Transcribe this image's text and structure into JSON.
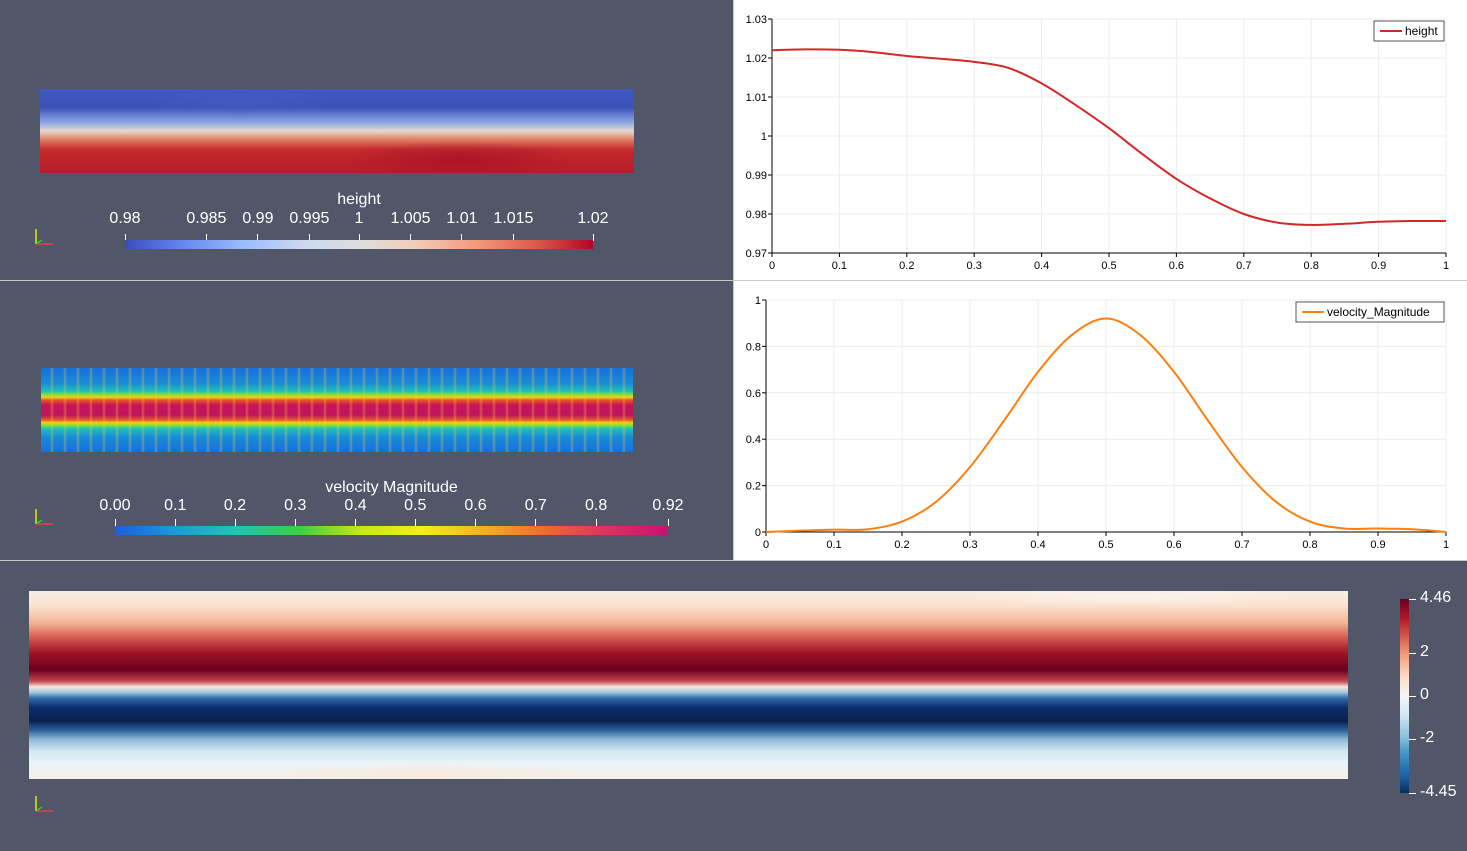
{
  "height_view": {
    "colorbar": {
      "title": "height",
      "ticks": [
        "0.98",
        "0.985",
        "0.99",
        "0.995",
        "1",
        "1.005",
        "1.01",
        "1.015",
        "1.02"
      ],
      "tick_fractions": [
        0.0,
        0.174,
        0.284,
        0.394,
        0.5,
        0.61,
        0.72,
        0.83,
        1.0
      ]
    },
    "colors": {
      "low": "#3b4cc0",
      "mid": "#dddddd",
      "high": "#b40426"
    }
  },
  "velocity_view": {
    "colorbar": {
      "title": "velocity Magnitude",
      "ticks": [
        "0.00",
        "0.1",
        "0.2",
        "0.3",
        "0.4",
        "0.5",
        "0.6",
        "0.7",
        "0.8",
        "0.92"
      ],
      "tick_fractions": [
        0.0,
        0.109,
        0.217,
        0.326,
        0.435,
        0.543,
        0.652,
        0.761,
        0.87,
        1.0
      ]
    }
  },
  "vorticity_view": {
    "colorbar": {
      "ticks": [
        "4.46",
        "2",
        "0",
        "-2",
        "-4.45"
      ],
      "tick_fractions": [
        1.0,
        0.724,
        0.5,
        0.276,
        0.0
      ]
    }
  },
  "chart_data": [
    {
      "type": "line",
      "series": [
        {
          "name": "height",
          "color": "#d62728",
          "x": [
            0,
            0.05,
            0.1,
            0.15,
            0.2,
            0.25,
            0.3,
            0.35,
            0.4,
            0.45,
            0.5,
            0.55,
            0.6,
            0.65,
            0.7,
            0.75,
            0.8,
            0.85,
            0.9,
            0.95,
            1.0
          ],
          "values": [
            1.022,
            1.0222,
            1.0221,
            1.0215,
            1.0205,
            1.0198,
            1.019,
            1.0175,
            1.0135,
            1.008,
            1.002,
            0.9953,
            0.989,
            0.984,
            0.98,
            0.9778,
            0.9772,
            0.9775,
            0.978,
            0.9782,
            0.9782
          ]
        }
      ],
      "xlim": [
        0,
        1
      ],
      "ylim": [
        0.97,
        1.03
      ],
      "xticks": [
        "0",
        "0.1",
        "0.2",
        "0.3",
        "0.4",
        "0.5",
        "0.6",
        "0.7",
        "0.8",
        "0.9",
        "1"
      ],
      "yticks": [
        "0.97",
        "0.98",
        "0.99",
        "1",
        "1.01",
        "1.02",
        "1.03"
      ],
      "legend": "top-right",
      "grid": true
    },
    {
      "type": "line",
      "series": [
        {
          "name": "velocity_Magnitude",
          "color": "#ff7f0e",
          "x": [
            0,
            0.05,
            0.1,
            0.15,
            0.2,
            0.25,
            0.3,
            0.35,
            0.4,
            0.45,
            0.5,
            0.55,
            0.6,
            0.65,
            0.7,
            0.75,
            0.8,
            0.85,
            0.9,
            0.95,
            1.0
          ],
          "values": [
            0.0,
            0.006,
            0.01,
            0.012,
            0.045,
            0.13,
            0.28,
            0.48,
            0.69,
            0.85,
            0.92,
            0.85,
            0.69,
            0.48,
            0.28,
            0.13,
            0.045,
            0.015,
            0.015,
            0.012,
            0.0
          ]
        }
      ],
      "xlim": [
        0,
        1
      ],
      "ylim": [
        0,
        1
      ],
      "xticks": [
        "0",
        "0.1",
        "0.2",
        "0.3",
        "0.4",
        "0.5",
        "0.6",
        "0.7",
        "0.8",
        "0.9",
        "1"
      ],
      "yticks": [
        "0",
        "0.2",
        "0.4",
        "0.6",
        "0.8",
        "1"
      ],
      "legend": "top-right",
      "grid": true
    }
  ]
}
